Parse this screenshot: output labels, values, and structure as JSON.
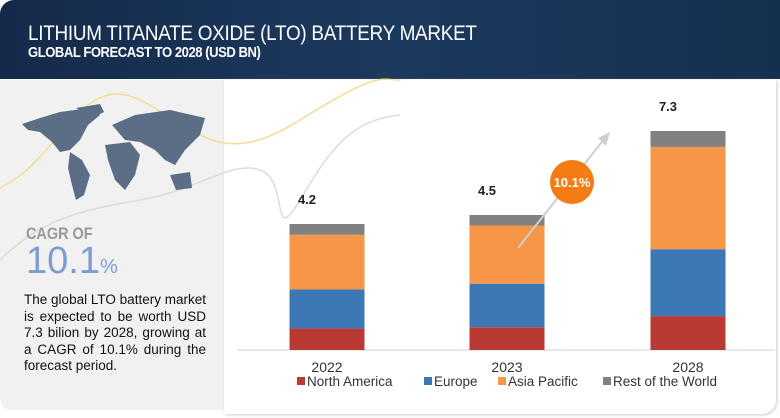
{
  "header": {
    "title": "LITHIUM TITANATE OXIDE (LTO) BATTERY MARKET",
    "subtitle": "GLOBAL FORECAST TO 2028 (USD BN)"
  },
  "summary": {
    "cagr_label": "CAGR OF",
    "cagr_value": "10.1",
    "cagr_unit": "%",
    "description": "The global LTO battery market is expected to be worth USD 7.3 bilion by 2028, growing at a CAGR of 10.1% during the forecast period."
  },
  "chart_data": {
    "type": "bar",
    "stacked": true,
    "title": "LITHIUM TITANATE OXIDE (LTO) BATTERY MARKET",
    "subtitle": "GLOBAL FORECAST TO 2028 (USD BN)",
    "categories": [
      "2022",
      "2023",
      "2028"
    ],
    "totals": [
      "4.2",
      "4.5",
      "7.3"
    ],
    "series": [
      {
        "name": "North America",
        "color": "#b83a32",
        "values": [
          0.72,
          0.76,
          1.13
        ]
      },
      {
        "name": "Europe",
        "color": "#3b78b5",
        "values": [
          1.3,
          1.45,
          2.23
        ]
      },
      {
        "name": "Asia Pacific",
        "color": "#f79646",
        "values": [
          1.82,
          1.94,
          3.41
        ]
      },
      {
        "name": "Rest of the World",
        "color": "#808080",
        "values": [
          0.36,
          0.35,
          0.53
        ]
      }
    ],
    "annotation": "10.1%",
    "annotation_color": "#f57c14",
    "legend": "bottom",
    "grid": false
  }
}
